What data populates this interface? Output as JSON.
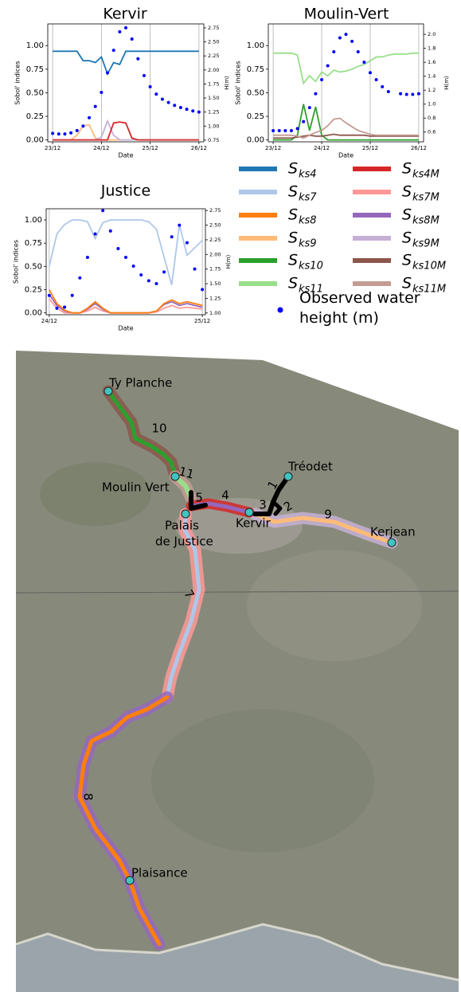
{
  "chart_data": [
    {
      "type": "line",
      "title": "Kervir",
      "xlabel": "Date",
      "ylabel": "Sobol' indices",
      "y2label": "H(m)",
      "grid": "x",
      "x": [
        23.0,
        23.125,
        23.25,
        23.375,
        23.5,
        23.625,
        23.75,
        23.875,
        24.0,
        24.125,
        24.25,
        24.375,
        24.5,
        24.625,
        24.75,
        24.875,
        25.0,
        25.125,
        25.25,
        25.375,
        25.5,
        25.625,
        25.75,
        25.875,
        26.0
      ],
      "xlim": [
        22.9,
        26.1
      ],
      "xticks": [
        {
          "value": 23,
          "label": "23/12"
        },
        {
          "value": 24,
          "label": "24/12"
        },
        {
          "value": 25,
          "label": "25/12"
        },
        {
          "value": 26,
          "label": "26/12"
        }
      ],
      "ylim": [
        -0.02,
        1.23
      ],
      "yticks": [
        {
          "value": 0,
          "label": "0.00"
        },
        0.25,
        {
          "value": 0.5,
          "label": "0.50"
        },
        0.75,
        {
          "value": 1,
          "label": "1.00"
        }
      ],
      "y2lim": [
        0.72,
        2.82
      ],
      "y2ticks": [
        0.75,
        {
          "value": 1,
          "label": "1.00"
        },
        1.25,
        {
          "value": 1.5,
          "label": "1.50"
        },
        1.75,
        {
          "value": 2,
          "label": "2.00"
        },
        2.25,
        {
          "value": 2.5,
          "label": "2.50"
        },
        2.75
      ],
      "series": [
        {
          "color": "#1f77b4",
          "values": [
            0.94,
            0.94,
            0.94,
            0.94,
            0.94,
            0.84,
            0.84,
            0.82,
            0.88,
            0.7,
            0.82,
            0.8,
            0.94,
            0.94,
            0.94,
            0.94,
            0.94,
            0.94,
            0.94,
            0.94,
            0.94,
            0.94,
            0.94,
            0.94,
            0.94
          ]
        },
        {
          "color": "#ffbb78",
          "values": [
            0,
            0,
            0,
            0,
            0.05,
            0.15,
            0.16,
            0.02,
            0,
            0,
            0,
            0,
            0,
            0,
            0,
            0,
            0,
            0,
            0,
            0,
            0,
            0,
            0,
            0,
            0
          ]
        },
        {
          "color": "#c5b0d5",
          "values": [
            0,
            0,
            0,
            0,
            0,
            0,
            0,
            0,
            0.03,
            0.2,
            0.05,
            0,
            0,
            0,
            0,
            0,
            0,
            0,
            0,
            0,
            0,
            0,
            0,
            0,
            0
          ]
        },
        {
          "color": "#d62728",
          "values": [
            0,
            0,
            0,
            0,
            0,
            0,
            0,
            0,
            0,
            0,
            0.18,
            0.19,
            0.18,
            0.02,
            0,
            0,
            0,
            0,
            0,
            0,
            0,
            0,
            0,
            0,
            0
          ]
        },
        {
          "color": "#0000ff",
          "axis": "y2",
          "marker": "dot",
          "values": [
            0.87,
            0.86,
            0.86,
            0.88,
            0.92,
            1.0,
            1.15,
            1.35,
            1.6,
            1.95,
            2.35,
            2.68,
            2.75,
            2.55,
            2.2,
            1.9,
            1.7,
            1.57,
            1.48,
            1.42,
            1.37,
            1.33,
            1.3,
            1.27,
            1.25
          ]
        }
      ]
    },
    {
      "type": "line",
      "title": "Moulin-Vert",
      "xlabel": "Date",
      "ylabel": "Sobol' indices",
      "y2label": "H(m)",
      "grid": "x",
      "x": [
        23.0,
        23.125,
        23.25,
        23.375,
        23.5,
        23.625,
        23.75,
        23.875,
        24.0,
        24.125,
        24.25,
        24.375,
        24.5,
        24.625,
        24.75,
        24.875,
        25.0,
        25.125,
        25.25,
        25.375,
        25.5,
        25.625,
        25.75,
        25.875,
        26.0
      ],
      "xlim": [
        22.9,
        26.1
      ],
      "xticks": [
        {
          "value": 23,
          "label": "23/12"
        },
        {
          "value": 24,
          "label": "24/12"
        },
        {
          "value": 25,
          "label": "25/12"
        },
        {
          "value": 26,
          "label": "26/12"
        }
      ],
      "ylim": [
        -0.02,
        1.23
      ],
      "yticks": [
        {
          "value": 0,
          "label": "0.00"
        },
        0.25,
        {
          "value": 0.5,
          "label": "0.50"
        },
        0.75,
        {
          "value": 1,
          "label": "1.00"
        }
      ],
      "y2lim": [
        0.46,
        2.15
      ],
      "y2ticks": [
        0.6,
        0.8,
        {
          "value": 1,
          "label": "1.0"
        },
        1.2,
        1.4,
        1.6,
        1.8,
        {
          "value": 2,
          "label": "2.0"
        }
      ],
      "series": [
        {
          "color": "#98df8a",
          "values": [
            0.92,
            0.92,
            0.92,
            0.92,
            0.9,
            0.6,
            0.68,
            0.62,
            0.72,
            0.68,
            0.74,
            0.72,
            0.73,
            0.75,
            0.78,
            0.8,
            0.84,
            0.88,
            0.88,
            0.9,
            0.91,
            0.91,
            0.91,
            0.92,
            0.92
          ]
        },
        {
          "color": "#2ca02c",
          "values": [
            0,
            0,
            0,
            0,
            0.05,
            0.38,
            0.1,
            0.35,
            0.05,
            0,
            0,
            0,
            0,
            0,
            0,
            0,
            0,
            0,
            0,
            0,
            0,
            0,
            0,
            0,
            0
          ]
        },
        {
          "color": "#8c564b",
          "values": [
            0.02,
            0.02,
            0.02,
            0.02,
            0.03,
            0.04,
            0.05,
            0.04,
            0.04,
            0.05,
            0.06,
            0.05,
            0.05,
            0.05,
            0.05,
            0.05,
            0.04,
            0.04,
            0.04,
            0.04,
            0.04,
            0.04,
            0.04,
            0.04,
            0.04
          ]
        },
        {
          "color": "#c49c94",
          "values": [
            0.05,
            0.05,
            0.05,
            0.05,
            0.04,
            0.02,
            0.05,
            0.08,
            0.1,
            0.15,
            0.22,
            0.23,
            0.18,
            0.14,
            0.1,
            0.08,
            0.06,
            0.05,
            0.05,
            0.05,
            0.05,
            0.05,
            0.05,
            0.05,
            0.05
          ]
        },
        {
          "color": "#0000ff",
          "axis": "y2",
          "marker": "dot",
          "values": [
            0.62,
            0.62,
            0.62,
            0.62,
            0.65,
            0.75,
            0.95,
            1.15,
            1.35,
            1.55,
            1.75,
            1.95,
            2.0,
            1.9,
            1.75,
            1.6,
            1.45,
            1.35,
            1.25,
            1.18,
            null,
            1.15,
            1.14,
            1.14,
            1.15
          ]
        }
      ]
    },
    {
      "type": "line",
      "title": "Justice",
      "xlabel": "Date",
      "ylabel": "Sobol' indices",
      "y2label": "H(m)",
      "grid": "x",
      "x": [
        24.0,
        24.05,
        24.1,
        24.15,
        24.2,
        24.25,
        24.3,
        24.35,
        24.4,
        24.45,
        24.5,
        24.55,
        24.6,
        24.65,
        24.7,
        24.75,
        24.8,
        24.85,
        24.9,
        24.95,
        25.0
      ],
      "xlim": [
        23.98,
        25.02
      ],
      "xticks": [
        {
          "value": 24,
          "label": "24/12"
        },
        {
          "value": 25,
          "label": "25/12"
        }
      ],
      "ylim": [
        -0.02,
        1.12
      ],
      "yticks": [
        {
          "value": 0,
          "label": "0.00"
        },
        0.25,
        {
          "value": 0.5,
          "label": "0.50"
        },
        0.75,
        {
          "value": 1,
          "label": "1.00"
        }
      ],
      "y2lim": [
        0.97,
        2.78
      ],
      "y2ticks": [
        {
          "value": 1,
          "label": "1.00"
        },
        1.25,
        {
          "value": 1.5,
          "label": "1.50"
        },
        1.75,
        {
          "value": 2,
          "label": "2.00"
        },
        2.25,
        {
          "value": 2.5,
          "label": "2.50"
        },
        2.75
      ],
      "series": [
        {
          "color": "#aec7e8",
          "values": [
            0.5,
            0.85,
            0.95,
            1.0,
            1.0,
            0.98,
            0.8,
            0.97,
            1.0,
            1.0,
            1.0,
            1.0,
            1.0,
            0.98,
            0.9,
            0.6,
            0.3,
            0.95,
            0.62,
            0.7,
            0.78
          ]
        },
        {
          "color": "#ff9896",
          "values": [
            0.15,
            0.05,
            0,
            0,
            0,
            0.02,
            0.06,
            0.02,
            0,
            0,
            0,
            0,
            0,
            0,
            0.01,
            0.05,
            0.08,
            0.05,
            0.06,
            0.05,
            0.04
          ]
        },
        {
          "color": "#9467bd",
          "values": [
            0.2,
            0.08,
            0.02,
            0,
            0,
            0.04,
            0.1,
            0.04,
            0,
            0,
            0,
            0,
            0,
            0,
            0.02,
            0.09,
            0.12,
            0.08,
            0.1,
            0.08,
            0.06
          ]
        },
        {
          "color": "#ff7f0e",
          "values": [
            0.25,
            0.1,
            0.03,
            0,
            0,
            0.05,
            0.12,
            0.05,
            0,
            0,
            0,
            0,
            0,
            0,
            0.02,
            0.1,
            0.14,
            0.1,
            0.12,
            0.1,
            0.08
          ]
        },
        {
          "color": "#0000ff",
          "axis": "y2",
          "marker": "dot",
          "values": [
            1.3,
            1.08,
            1.1,
            1.3,
            1.6,
            1.95,
            2.35,
            2.75,
            2.4,
            2.1,
            1.95,
            1.8,
            1.65,
            1.55,
            1.5,
            1.7,
            2.3,
            2.5,
            2.2,
            1.75,
            1.4
          ]
        }
      ]
    }
  ],
  "legend": {
    "items": [
      {
        "symbol": "S",
        "subscript": "ks4",
        "color": "#1f77b4"
      },
      {
        "symbol": "S",
        "subscript": "ks7",
        "color": "#aec7e8"
      },
      {
        "symbol": "S",
        "subscript": "ks8",
        "color": "#ff7f0e"
      },
      {
        "symbol": "S",
        "subscript": "ks9",
        "color": "#ffbb78"
      },
      {
        "symbol": "S",
        "subscript": "ks10",
        "color": "#2ca02c"
      },
      {
        "symbol": "S",
        "subscript": "ks11",
        "color": "#98df8a"
      },
      {
        "symbol": "S",
        "subscript": "ks4M",
        "color": "#d62728"
      },
      {
        "symbol": "S",
        "subscript": "ks7M",
        "color": "#ff9896"
      },
      {
        "symbol": "S",
        "subscript": "ks8M",
        "color": "#9467bd"
      },
      {
        "symbol": "S",
        "subscript": "ks9M",
        "color": "#c5b0d5"
      },
      {
        "symbol": "S",
        "subscript": "ks10M",
        "color": "#8c564b"
      },
      {
        "symbol": "S",
        "subscript": "ks11M",
        "color": "#c49c94"
      }
    ],
    "observed": {
      "label": "Observed water height (m)",
      "color": "#0000ff"
    }
  },
  "map": {
    "places": [
      {
        "lines": [
          "Ty Planche"
        ]
      },
      {
        "lines": [
          "Moulin Vert"
        ]
      },
      {
        "lines": [
          "Palais",
          "de Justice"
        ]
      },
      {
        "lines": [
          "Kervir"
        ]
      },
      {
        "lines": [
          "Tréodet"
        ]
      },
      {
        "lines": [
          "Kerjean"
        ]
      },
      {
        "lines": [
          "Plaisance"
        ]
      }
    ],
    "reaches": [
      "10",
      "11",
      "5",
      "4",
      "1",
      "3",
      "2",
      "9",
      "7",
      "8"
    ]
  }
}
